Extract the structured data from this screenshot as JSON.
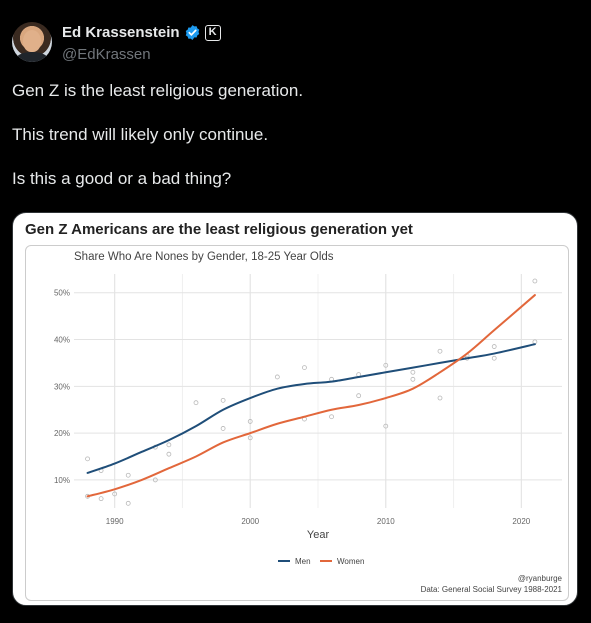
{
  "author": {
    "name": "Ed Krassenstein",
    "handle": "@EdKrassen",
    "verified_color": "#1d9bf0",
    "badge_letter": "K"
  },
  "tweet": {
    "lines": [
      "Gen Z is the least religious generation.",
      "This trend will likely only continue.",
      "Is this a good or a bad thing?"
    ]
  },
  "media": {
    "title": "Gen Z Americans are the least religious generation yet"
  },
  "chart_data": {
    "type": "line",
    "title": "Share Who Are Nones by Gender, 18-25 Year Olds",
    "xlabel": "Year",
    "ylabel": "",
    "xlim": [
      1987,
      2023
    ],
    "ylim": [
      4,
      54
    ],
    "x_ticks": [
      1990,
      2000,
      2010,
      2020
    ],
    "y_ticks": [
      10,
      20,
      30,
      40,
      50
    ],
    "y_tick_labels": [
      "10%",
      "20%",
      "30%",
      "40%",
      "50%"
    ],
    "grid": true,
    "legend_position": "bottom",
    "series": [
      {
        "name": "Men",
        "color": "#1f4e79",
        "line": [
          [
            1988,
            11.5
          ],
          [
            1990,
            13.5
          ],
          [
            1992,
            16
          ],
          [
            1994,
            18.5
          ],
          [
            1996,
            21.5
          ],
          [
            1998,
            25
          ],
          [
            2000,
            27.5
          ],
          [
            2002,
            29.5
          ],
          [
            2004,
            30.5
          ],
          [
            2006,
            31
          ],
          [
            2008,
            32
          ],
          [
            2010,
            33
          ],
          [
            2012,
            34
          ],
          [
            2014,
            35
          ],
          [
            2016,
            36
          ],
          [
            2018,
            37
          ],
          [
            2021,
            39
          ]
        ],
        "points": [
          [
            1988,
            14.5
          ],
          [
            1989,
            12
          ],
          [
            1991,
            11
          ],
          [
            1993,
            17
          ],
          [
            1994,
            17.5
          ],
          [
            1996,
            26.5
          ],
          [
            1998,
            27
          ],
          [
            2000,
            22.5
          ],
          [
            2002,
            32
          ],
          [
            2004,
            34
          ],
          [
            2006,
            31.5
          ],
          [
            2008,
            32.5
          ],
          [
            2010,
            34.5
          ],
          [
            2012,
            33
          ],
          [
            2014,
            37.5
          ],
          [
            2016,
            36
          ],
          [
            2018,
            38.5
          ],
          [
            2021,
            39.5
          ]
        ]
      },
      {
        "name": "Women",
        "color": "#e2673b",
        "line": [
          [
            1988,
            6.5
          ],
          [
            1990,
            8
          ],
          [
            1992,
            10
          ],
          [
            1994,
            12.5
          ],
          [
            1996,
            15
          ],
          [
            1998,
            18
          ],
          [
            2000,
            20
          ],
          [
            2002,
            22
          ],
          [
            2004,
            23.5
          ],
          [
            2006,
            25
          ],
          [
            2008,
            26
          ],
          [
            2010,
            27.5
          ],
          [
            2012,
            29.5
          ],
          [
            2014,
            33
          ],
          [
            2016,
            37
          ],
          [
            2018,
            42
          ],
          [
            2021,
            49.5
          ]
        ],
        "points": [
          [
            1988,
            6.5
          ],
          [
            1989,
            6
          ],
          [
            1990,
            7
          ],
          [
            1991,
            5
          ],
          [
            1993,
            10
          ],
          [
            1994,
            15.5
          ],
          [
            1998,
            21
          ],
          [
            2000,
            19
          ],
          [
            2004,
            23
          ],
          [
            2006,
            23.5
          ],
          [
            2008,
            28
          ],
          [
            2010,
            21.5
          ],
          [
            2012,
            31.5
          ],
          [
            2014,
            27.5
          ],
          [
            2016,
            36.5
          ],
          [
            2018,
            36
          ],
          [
            2021,
            52.5
          ]
        ]
      }
    ],
    "credit": "@ryanburge",
    "source": "Data: General Social Survey 1988-2021"
  }
}
